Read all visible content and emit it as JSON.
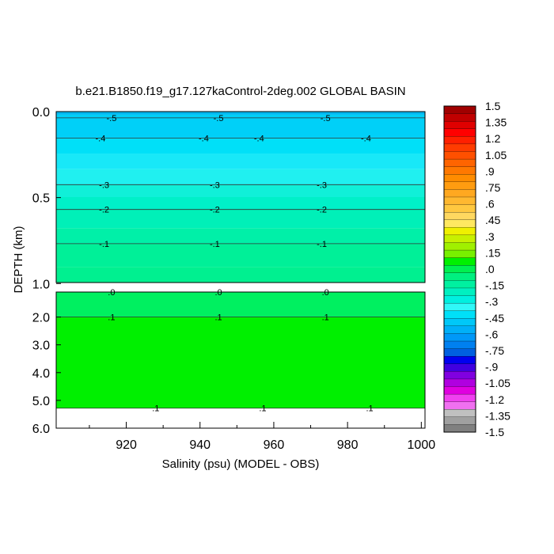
{
  "chart_data": {
    "type": "heatmap",
    "title": "b.e21.B1850.f19_g17.127kaControl-2deg.002 GLOBAL BASIN",
    "xlabel": "Salinity (psu) (MODEL - OBS)",
    "ylabel": "DEPTH (km)",
    "x_ticks": [
      "920",
      "940",
      "960",
      "980",
      "1000"
    ],
    "x_range": [
      901,
      1001
    ],
    "upper_panel": {
      "depth_range_km": [
        0.0,
        1.1
      ],
      "y_ticks": [
        "0.0",
        "0.5",
        "1.0"
      ],
      "y_tick_values": [
        0.0,
        0.5,
        1.0
      ],
      "contours": [
        {
          "label": "-.5",
          "depth": 0.04,
          "label_x": [
            916,
            945,
            974
          ]
        },
        {
          "label": "-.4",
          "depth": 0.17,
          "label_x": [
            913,
            941,
            956,
            985
          ]
        },
        {
          "label": "-.3",
          "depth": 0.47,
          "label_x": [
            914,
            944,
            973
          ]
        },
        {
          "label": "-.2",
          "depth": 0.63,
          "label_x": [
            914,
            944,
            973
          ]
        },
        {
          "label": "-.1",
          "depth": 0.85,
          "label_x": [
            914,
            944,
            973
          ]
        }
      ],
      "bands": [
        {
          "from": 0.0,
          "to": 0.02,
          "value": -0.55,
          "color": "#00b8f0"
        },
        {
          "from": 0.02,
          "to": 0.17,
          "value": -0.45,
          "color": "#00d0f8"
        },
        {
          "from": 0.17,
          "to": 0.27,
          "value": -0.4,
          "color": "#00e0f8"
        },
        {
          "from": 0.27,
          "to": 0.37,
          "value": -0.35,
          "color": "#18e8f8"
        },
        {
          "from": 0.37,
          "to": 0.47,
          "value": -0.3,
          "color": "#20f0f0"
        },
        {
          "from": 0.47,
          "to": 0.55,
          "value": -0.25,
          "color": "#10f0d8"
        },
        {
          "from": 0.55,
          "to": 0.63,
          "value": -0.2,
          "color": "#00f0c8"
        },
        {
          "from": 0.63,
          "to": 0.75,
          "value": -0.15,
          "color": "#00f0b8"
        },
        {
          "from": 0.75,
          "to": 0.85,
          "value": -0.1,
          "color": "#00f0a8"
        },
        {
          "from": 0.85,
          "to": 1.0,
          "value": -0.05,
          "color": "#00f098"
        },
        {
          "from": 1.0,
          "to": 1.1,
          "value": 0.0,
          "color": "#00f090"
        }
      ]
    },
    "lower_panel": {
      "depth_range_km": [
        1.1,
        6.0
      ],
      "y_ticks": [
        "2.0",
        "3.0",
        "4.0",
        "5.0",
        "6.0"
      ],
      "y_tick_values": [
        2.0,
        3.0,
        4.0,
        5.0,
        6.0
      ],
      "contours": [
        {
          "label": ".0",
          "depth": 1.1,
          "label_x": [
            916,
            945,
            974
          ]
        },
        {
          "label": ".1",
          "depth": 2.0,
          "label_x": [
            916,
            945,
            974
          ]
        },
        {
          "label": ".1",
          "depth": 5.28,
          "label_x": [
            928,
            957,
            986
          ]
        }
      ],
      "bands": [
        {
          "from": 1.1,
          "to": 2.0,
          "value": 0.05,
          "color": "#00f060"
        },
        {
          "from": 2.0,
          "to": 5.28,
          "value": 0.1,
          "color": "#00f000"
        },
        {
          "from": 5.28,
          "to": 5.4,
          "value": 0.15,
          "color": "#ffffff"
        }
      ]
    },
    "colorbar": {
      "labels": [
        "1.5",
        "1.35",
        "1.2",
        "1.05",
        ".9",
        ".75",
        ".6",
        ".45",
        ".3",
        ".15",
        ".0",
        "-.15",
        "-.3",
        "-.45",
        "-.6",
        "-.75",
        "-.9",
        "-1.05",
        "-1.2",
        "-1.35",
        "-1.5"
      ],
      "colors": [
        "#a00000",
        "#c00000",
        "#e00000",
        "#ff0000",
        "#ff2000",
        "#ff3c00",
        "#ff5000",
        "#ff6400",
        "#ff7800",
        "#ff8c00",
        "#ff9c10",
        "#ffa820",
        "#ffb830",
        "#ffc840",
        "#ffd860",
        "#ffe860",
        "#f0f000",
        "#c8f000",
        "#a0f000",
        "#78f000",
        "#00f000",
        "#00f050",
        "#00f080",
        "#00f0a0",
        "#00f0c0",
        "#00f0e0",
        "#30f8f8",
        "#00e0f8",
        "#00c8f8",
        "#00b0f8",
        "#0098f8",
        "#0080f0",
        "#0060e0",
        "#0000f0",
        "#4000e0",
        "#8000e0",
        "#b000e0",
        "#e000e0",
        "#f040f0",
        "#f070f0",
        "#c0c0c0",
        "#a0a0a0",
        "#808080"
      ]
    }
  }
}
